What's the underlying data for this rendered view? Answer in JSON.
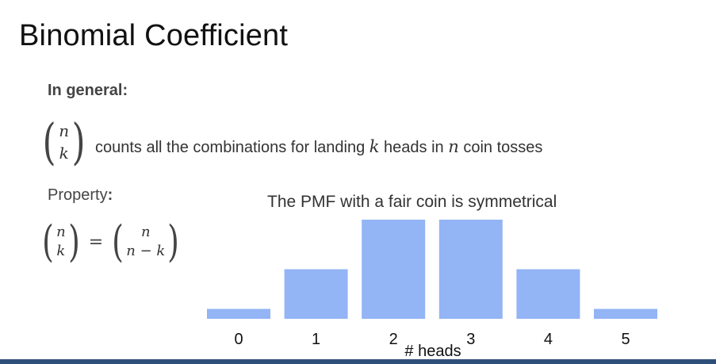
{
  "slide": {
    "title": "Binomial Coefficient",
    "in_general": "In general:",
    "binom_top": "n",
    "binom_bottom": "k",
    "counts_prefix": "counts all the combinations for landing ",
    "counts_var_k": "k",
    "counts_middle": " heads in ",
    "counts_var_n": "n",
    "counts_suffix": " coin tosses",
    "property_label": "Property",
    "property_colon": ":",
    "lhs_top": "n",
    "lhs_bottom": "k",
    "equals": "=",
    "rhs_top": "n",
    "rhs_bottom": "n − k",
    "pmf_title": "The PMF with a fair coin is symmetrical"
  },
  "colors": {
    "bar": "#93b4f5",
    "accent": "#2e4f7a"
  },
  "chart_data": {
    "type": "bar",
    "title": "The PMF with a fair coin is symmetrical",
    "xlabel": "# heads",
    "ylabel": "",
    "categories": [
      "0",
      "1",
      "2",
      "3",
      "4",
      "5"
    ],
    "values": [
      0.03125,
      0.15625,
      0.3125,
      0.3125,
      0.15625,
      0.03125
    ],
    "ylim": [
      0,
      0.3125
    ],
    "grid": false,
    "legend": "none"
  }
}
